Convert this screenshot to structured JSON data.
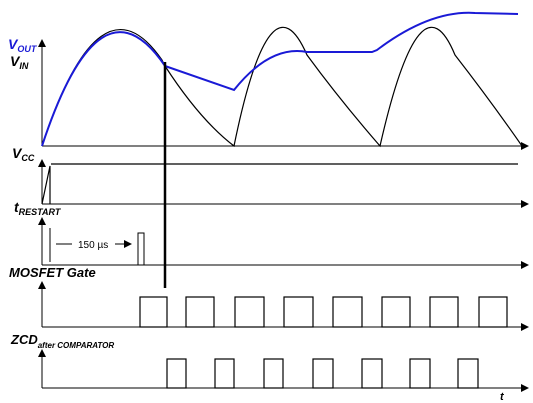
{
  "labels": {
    "vout": {
      "main": "V",
      "sub": "OUT"
    },
    "vin": {
      "main": "V",
      "sub": "IN"
    },
    "vcc": {
      "main": "V",
      "sub": "CC"
    },
    "trestart": {
      "main": "t",
      "sub": "RESTART"
    },
    "mosfet_gate": "MOSFET Gate",
    "zcd": {
      "main": "ZCD",
      "sub": "after COMPARATOR"
    },
    "time_axis": "t",
    "restart_interval": "150 µs"
  },
  "colors": {
    "vout_trace": "#1a1ad6",
    "trace": "#000000",
    "background": "#ffffff"
  }
}
